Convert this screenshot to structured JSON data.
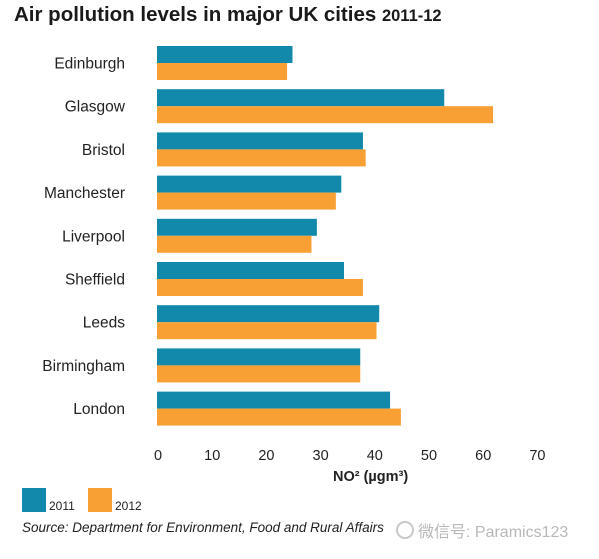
{
  "colors": {
    "y2011": "#1289aa",
    "y2012": "#f9a035"
  },
  "chart_data": {
    "type": "bar",
    "orientation": "horizontal",
    "title": "Air pollution levels in major UK cities",
    "title_years": "2011-12",
    "xlabel": "NO² (µgm³)",
    "ylabel": "",
    "xlim": [
      0,
      70
    ],
    "xticks": [
      "0",
      "10",
      "20",
      "30",
      "40",
      "50",
      "60",
      "70"
    ],
    "grid": false,
    "legend_position": "bottom-left",
    "categories": [
      "Edinburgh",
      "Glasgow",
      "Bristol",
      "Manchester",
      "Liverpool",
      "Sheffield",
      "Leeds",
      "Birmingham",
      "London"
    ],
    "series": [
      {
        "name": "2011",
        "values": [
          25,
          53,
          38,
          34,
          29.5,
          34.5,
          41,
          37.5,
          43
        ]
      },
      {
        "name": "2012",
        "values": [
          24,
          62,
          38.5,
          33,
          28.5,
          38,
          40.5,
          37.5,
          45
        ]
      }
    ],
    "source": "Source: Department for Environment, Food and Rural Affairs"
  },
  "watermark": "微信号: Paramics123"
}
